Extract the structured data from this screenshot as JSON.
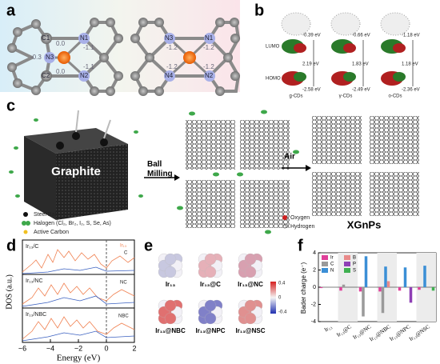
{
  "panels": {
    "a": {
      "label": "a",
      "molecule1": {
        "atoms": [
          "C1",
          "C2",
          "N1",
          "N2",
          "N3"
        ],
        "charges": [
          "0.0",
          "0.0",
          "-1.1",
          "-1.1",
          "-0.3"
        ]
      },
      "molecule2": {
        "atoms": [
          "N3",
          "N1",
          "N4",
          "N2"
        ],
        "charges": [
          "-1.2",
          "-1.2",
          "-1.2",
          "-1.2"
        ]
      }
    },
    "b": {
      "label": "b",
      "lumo": "LUMO",
      "homo": "HOMO",
      "columns": [
        {
          "name": "g-CDs",
          "lumo": "-0.39 eV",
          "gap": "2.19 eV",
          "homo": "-2.58 eV"
        },
        {
          "name": "γ-CDs",
          "lumo": "-0.66 eV",
          "gap": "1.83 eV",
          "homo": "-2.49 eV"
        },
        {
          "name": "o-CDs",
          "lumo": "-1.18 eV",
          "gap": "1.18 eV",
          "homo": "-2.36 eV"
        }
      ]
    },
    "c": {
      "label": "c",
      "graphite": "Graphite",
      "step1": "Ball\nMilling",
      "step2": "Air",
      "legend": [
        "Steel Ball",
        "Halogen (Cl₂, Br₂, I₂, S, Se, As)",
        "Active Carbon"
      ],
      "legend2": [
        "Oxygen",
        "Hydrogen"
      ],
      "product": "XGnPs"
    },
    "d": {
      "label": "d",
      "ylabel": "DOS (a.u.)",
      "xlabel": "Energy (eV)",
      "xticks": [
        "−6",
        "−4",
        "−2",
        "0",
        "2"
      ],
      "rows": [
        {
          "name": "Ir₁₃/C",
          "legend": [
            "Ir₁₃",
            "C"
          ]
        },
        {
          "name": "Ir₁₃/NC",
          "legend": [
            "NC"
          ]
        },
        {
          "name": "Ir₁₃/NBC",
          "legend": [
            "NBC"
          ]
        }
      ]
    },
    "e": {
      "label": "e",
      "clusters": [
        "Ir₁₃",
        "Ir₁₃@C",
        "Ir₁₃@NC",
        "Ir₁₃@NBC",
        "Ir₁₃@NPC",
        "Ir₁₃@NSC"
      ],
      "colorbar": [
        "0.4",
        "0",
        "-0.4"
      ]
    }
  },
  "chart_data": {
    "type": "bar",
    "panel": "f",
    "ylabel": "Bader charge (e⁻)",
    "categories": [
      "Ir₁₃",
      "Ir₁₃@C",
      "Ir₁₃@NC",
      "Ir₁₃@NBC",
      "Ir₁₃@NPC",
      "Ir₁₃@NSC"
    ],
    "series": [
      {
        "name": "Ir",
        "color": "#e0409a",
        "values": [
          -0.1,
          -0.4,
          -0.5,
          -0.5,
          -0.4,
          -0.3
        ]
      },
      {
        "name": "C",
        "color": "#9a9a9a",
        "values": [
          null,
          0.3,
          -3.4,
          -3.0,
          null,
          null
        ]
      },
      {
        "name": "N",
        "color": "#3b8fd6",
        "values": [
          null,
          null,
          3.6,
          2.4,
          2.3,
          2.5
        ]
      },
      {
        "name": "B",
        "color": "#e98a8a",
        "values": [
          null,
          null,
          null,
          0.7,
          null,
          null
        ]
      },
      {
        "name": "P",
        "color": "#8e3fb5",
        "values": [
          null,
          null,
          null,
          null,
          -1.8,
          null
        ]
      },
      {
        "name": "S",
        "color": "#3fb050",
        "values": [
          null,
          null,
          null,
          null,
          null,
          -0.4
        ]
      }
    ],
    "ylim": [
      -4,
      4
    ],
    "yticks": [
      -4,
      -2,
      0,
      2,
      4
    ],
    "legend": "upper left"
  }
}
